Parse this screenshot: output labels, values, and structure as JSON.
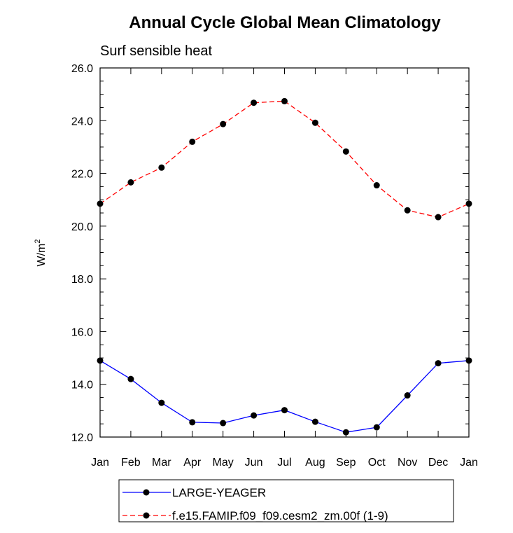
{
  "chart_data": {
    "type": "line",
    "title": "Annual Cycle Global Mean Climatology",
    "subtitle": "Surf sensible heat",
    "ylabel": "W/m",
    "ylabel_superscript": "2",
    "xlabel": "",
    "ylim": [
      12.0,
      26.0
    ],
    "yticks": [
      "12.0",
      "14.0",
      "16.0",
      "18.0",
      "20.0",
      "22.0",
      "24.0",
      "26.0"
    ],
    "categories": [
      "Jan",
      "Feb",
      "Mar",
      "Apr",
      "May",
      "Jun",
      "Jul",
      "Aug",
      "Sep",
      "Oct",
      "Nov",
      "Dec",
      "Jan"
    ],
    "series": [
      {
        "name": "LARGE-YEAGER",
        "color": "#0000ff",
        "dash": "solid",
        "values": [
          14.9,
          14.2,
          13.3,
          12.56,
          12.53,
          12.82,
          13.02,
          12.58,
          12.18,
          12.37,
          13.58,
          14.8,
          14.9
        ]
      },
      {
        "name": "f.e15.FAMIP.f09_f09.cesm2_zm.00f (1-9)",
        "color": "#ff0000",
        "dash": "dashed",
        "values": [
          20.85,
          21.66,
          22.22,
          23.2,
          23.87,
          24.68,
          24.74,
          23.92,
          22.83,
          21.55,
          20.6,
          20.34,
          20.85
        ]
      }
    ],
    "legend_position": "bottom"
  }
}
